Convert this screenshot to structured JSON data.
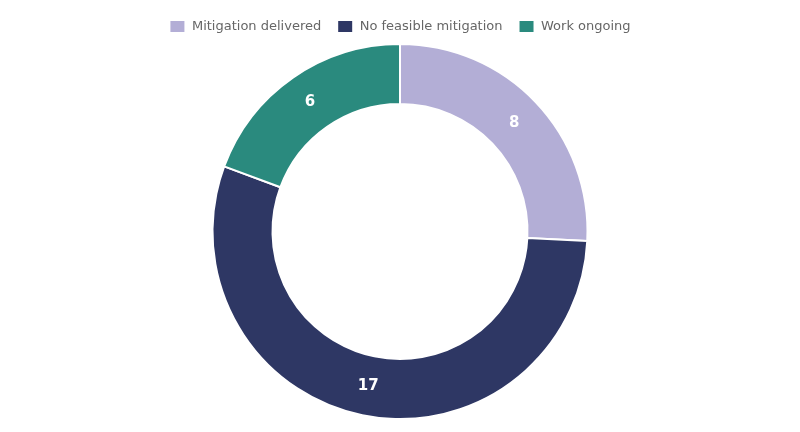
{
  "chart_data": {
    "type": "doughnut",
    "categories": [
      "Mitigation delivered",
      "No feasible mitigation",
      "Work ongoing"
    ],
    "values": [
      8,
      17,
      6
    ],
    "colors": [
      "#b3aed6",
      "#2e3764",
      "#2a8a7e"
    ],
    "data_labels": true,
    "legend": "top"
  }
}
